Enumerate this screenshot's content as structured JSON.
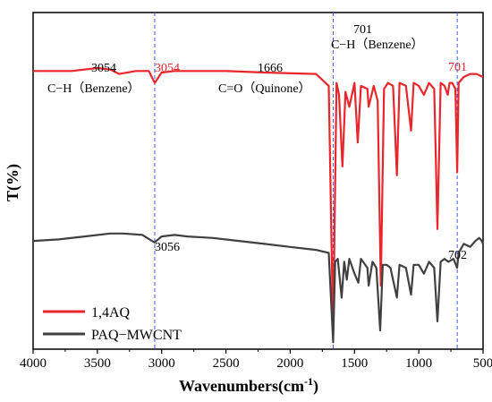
{
  "chart_data": {
    "type": "line",
    "xlabel": "Wavenumbers(cm",
    "xlabel_sup": "-1",
    "xlabel_close": ")",
    "ylabel": "T(%)",
    "xlim": [
      4000,
      500
    ],
    "x_reversed": true,
    "xticks": [
      "4000",
      "3500",
      "3000",
      "2500",
      "2000",
      "1500",
      "1000",
      "500"
    ],
    "reference_lines_cm1": [
      3054,
      1666,
      701
    ],
    "series": [
      {
        "name": "1,4AQ",
        "color": "#e8262c",
        "baseline": 0.9,
        "points": [
          [
            4000,
            0.9
          ],
          [
            3700,
            0.9
          ],
          [
            3500,
            0.91
          ],
          [
            3400,
            0.905
          ],
          [
            3330,
            0.89
          ],
          [
            3200,
            0.9
          ],
          [
            3100,
            0.9
          ],
          [
            3054,
            0.86
          ],
          [
            3000,
            0.895
          ],
          [
            2900,
            0.9
          ],
          [
            2500,
            0.9
          ],
          [
            2200,
            0.895
          ],
          [
            1800,
            0.89
          ],
          [
            1700,
            0.85
          ],
          [
            1666,
            0.02
          ],
          [
            1640,
            0.86
          ],
          [
            1620,
            0.82
          ],
          [
            1594,
            0.58
          ],
          [
            1570,
            0.83
          ],
          [
            1540,
            0.78
          ],
          [
            1500,
            0.86
          ],
          [
            1475,
            0.66
          ],
          [
            1450,
            0.85
          ],
          [
            1400,
            0.84
          ],
          [
            1390,
            0.78
          ],
          [
            1350,
            0.85
          ],
          [
            1320,
            0.8
          ],
          [
            1295,
            0.18
          ],
          [
            1270,
            0.84
          ],
          [
            1240,
            0.86
          ],
          [
            1200,
            0.85
          ],
          [
            1170,
            0.55
          ],
          [
            1150,
            0.86
          ],
          [
            1100,
            0.85
          ],
          [
            1060,
            0.7
          ],
          [
            1040,
            0.86
          ],
          [
            1000,
            0.85
          ],
          [
            960,
            0.82
          ],
          [
            920,
            0.86
          ],
          [
            880,
            0.84
          ],
          [
            855,
            0.37
          ],
          [
            830,
            0.86
          ],
          [
            800,
            0.85
          ],
          [
            775,
            0.82
          ],
          [
            760,
            0.86
          ],
          [
            740,
            0.86
          ],
          [
            715,
            0.84
          ],
          [
            701,
            0.56
          ],
          [
            690,
            0.86
          ],
          [
            650,
            0.88
          ],
          [
            600,
            0.89
          ],
          [
            550,
            0.89
          ],
          [
            500,
            0.88
          ]
        ]
      },
      {
        "name": "PAQ-MWCNT",
        "color": "#404040",
        "baseline": 0.38,
        "points": [
          [
            4000,
            0.33
          ],
          [
            3800,
            0.335
          ],
          [
            3600,
            0.345
          ],
          [
            3400,
            0.355
          ],
          [
            3300,
            0.355
          ],
          [
            3150,
            0.35
          ],
          [
            3056,
            0.325
          ],
          [
            3000,
            0.345
          ],
          [
            2900,
            0.35
          ],
          [
            2800,
            0.345
          ],
          [
            2600,
            0.34
          ],
          [
            2400,
            0.33
          ],
          [
            2200,
            0.32
          ],
          [
            2000,
            0.31
          ],
          [
            1800,
            0.3
          ],
          [
            1700,
            0.29
          ],
          [
            1666,
            -0.01
          ],
          [
            1650,
            0.26
          ],
          [
            1630,
            0.27
          ],
          [
            1600,
            0.14
          ],
          [
            1580,
            0.26
          ],
          [
            1560,
            0.2
          ],
          [
            1540,
            0.27
          ],
          [
            1500,
            0.22
          ],
          [
            1470,
            0.19
          ],
          [
            1450,
            0.27
          ],
          [
            1400,
            0.24
          ],
          [
            1390,
            0.18
          ],
          [
            1360,
            0.26
          ],
          [
            1330,
            0.24
          ],
          [
            1300,
            0.03
          ],
          [
            1280,
            0.25
          ],
          [
            1250,
            0.25
          ],
          [
            1220,
            0.24
          ],
          [
            1170,
            0.14
          ],
          [
            1150,
            0.25
          ],
          [
            1100,
            0.24
          ],
          [
            1060,
            0.15
          ],
          [
            1040,
            0.25
          ],
          [
            1000,
            0.25
          ],
          [
            960,
            0.22
          ],
          [
            920,
            0.26
          ],
          [
            880,
            0.24
          ],
          [
            855,
            0.06
          ],
          [
            830,
            0.26
          ],
          [
            800,
            0.27
          ],
          [
            770,
            0.26
          ],
          [
            730,
            0.27
          ],
          [
            702,
            0.24
          ],
          [
            690,
            0.29
          ],
          [
            650,
            0.32
          ],
          [
            600,
            0.31
          ],
          [
            560,
            0.33
          ],
          [
            530,
            0.34
          ],
          [
            510,
            0.33
          ],
          [
            500,
            0.32
          ]
        ]
      }
    ],
    "annotations": [
      {
        "text": "3054",
        "color": "black",
        "style": "anno"
      },
      {
        "text": "C−H（Benzene）",
        "style": "anno"
      },
      {
        "text": "3054",
        "style": "anno-red"
      },
      {
        "text": "1666",
        "style": "anno"
      },
      {
        "text": "C=O（Quinone）",
        "style": "anno"
      },
      {
        "text": "701",
        "style": "anno"
      },
      {
        "text": "C−H（Benzene）",
        "style": "anno"
      },
      {
        "text": "701",
        "style": "anno-red"
      },
      {
        "text": "3056",
        "style": "anno"
      },
      {
        "text": "702",
        "style": "anno"
      }
    ],
    "legend": [
      {
        "label": "1,4AQ",
        "color": "#e8262c"
      },
      {
        "label": "PAQ−MWCNT",
        "color": "#404040"
      }
    ]
  }
}
